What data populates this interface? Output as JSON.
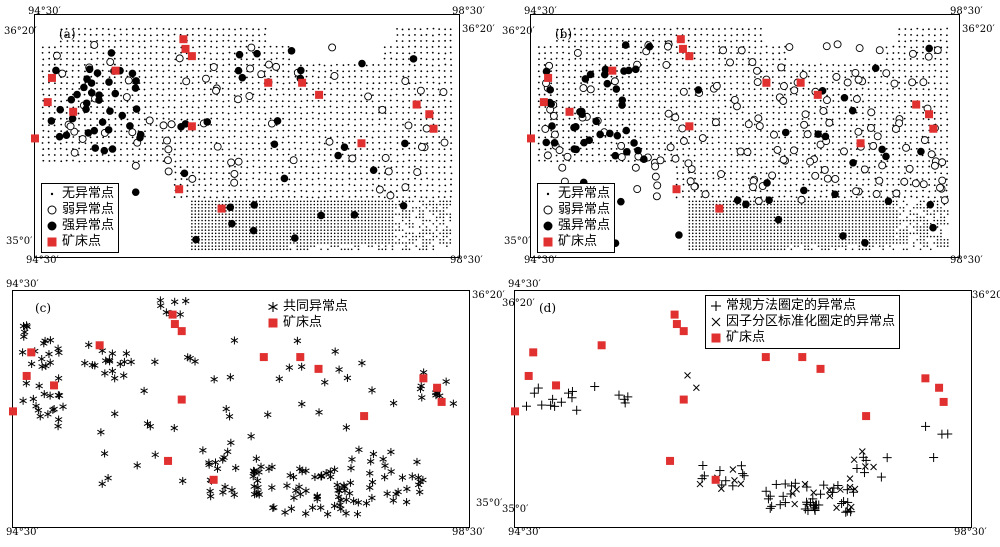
{
  "colors": {
    "deposit": "#e03030",
    "strong": "#000000",
    "weak": "#000000",
    "plus": "#000000"
  },
  "coords": {
    "tl_lon": "94°30′",
    "tr_lon": "98°30′",
    "tl_lat": "36°20′",
    "bl_lat": "35°0′",
    "bl_lon": "94°30′",
    "br_lon": "98°30′"
  },
  "panels": [
    {
      "id": "a",
      "label": "(a)",
      "legend": [
        "无异常点",
        "弱异常点",
        "强异常点",
        "矿床点"
      ],
      "legend_icons": [
        "small-dot-icon",
        "open-circle-icon",
        "filled-circle-icon",
        "red-square-icon"
      ]
    },
    {
      "id": "b",
      "label": "(b)",
      "legend": [
        "无异常点",
        "弱异常点",
        "强异常点",
        "矿床点"
      ],
      "legend_icons": [
        "small-dot-icon",
        "open-circle-icon",
        "filled-circle-icon",
        "red-square-icon"
      ]
    },
    {
      "id": "c",
      "label": "(c)",
      "legend": [
        "共同异常点",
        "矿床点"
      ],
      "legend_icons": [
        "asterisk-icon",
        "red-square-icon"
      ]
    },
    {
      "id": "d",
      "label": "(d)",
      "legend": [
        "常规方法圈定的异常点",
        "因子分区标准化圈定的异常点",
        "矿床点"
      ],
      "legend_icons": [
        "plus-icon",
        "cross-icon",
        "red-square-icon"
      ]
    }
  ]
}
